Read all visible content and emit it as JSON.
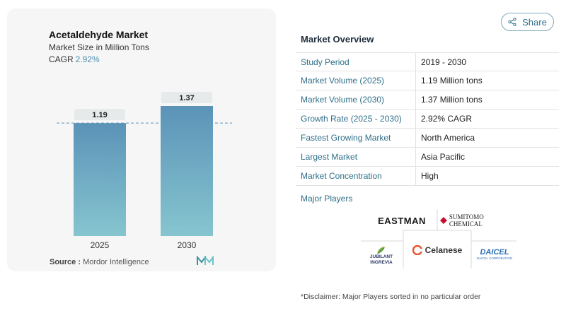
{
  "chart": {
    "title": "Acetaldehyde Market",
    "subtitle": "Market Size in Million Tons",
    "cagr_label": "CAGR",
    "cagr_value": "2.92%",
    "source_label": "Source :",
    "source_value": "Mordor Intelligence"
  },
  "chart_data": {
    "type": "bar",
    "title": "Acetaldehyde Market",
    "subtitle": "Market Size in Million Tons",
    "categories": [
      "2025",
      "2030"
    ],
    "values": [
      1.19,
      1.37
    ],
    "value_labels": [
      "1.19",
      "1.37"
    ],
    "ylim": [
      0,
      1.37
    ],
    "xlabel": "",
    "ylabel": "",
    "reference_line": {
      "value": 1.19,
      "style": "dashed"
    },
    "grid": false,
    "colors": {
      "bar_top": "#5b93b8",
      "bar_bottom": "#86c5cf",
      "label_bg": "#e6eaea",
      "ref_line": "#5b93b8"
    }
  },
  "share": {
    "label": "Share"
  },
  "overview": {
    "title": "Market Overview",
    "rows": [
      {
        "label": "Study Period",
        "value": "2019 - 2030"
      },
      {
        "label": "Market Volume (2025)",
        "value": "1.19 Million tons"
      },
      {
        "label": "Market Volume (2030)",
        "value": "1.37 Million tons"
      },
      {
        "label": "Growth Rate (2025 - 2030)",
        "value": "2.92% CAGR"
      },
      {
        "label": "Fastest Growing Market",
        "value": "North America"
      },
      {
        "label": "Largest Market",
        "value": "Asia Pacific"
      },
      {
        "label": "Market Concentration",
        "value": "High"
      }
    ]
  },
  "players": {
    "title": "Major Players",
    "logos": {
      "eastman": "EASTMAN",
      "sumitomo": "SUMITOMO CHEMICAL",
      "celanese": "Celanese",
      "jubilant_1": "JUBILANT",
      "jubilant_2": "INGREVIA",
      "daicel_1": "DAICEL",
      "daicel_2": "DAICEL CORPORATION"
    }
  },
  "disclaimer": "*Disclaimer: Major Players sorted in no particular order"
}
